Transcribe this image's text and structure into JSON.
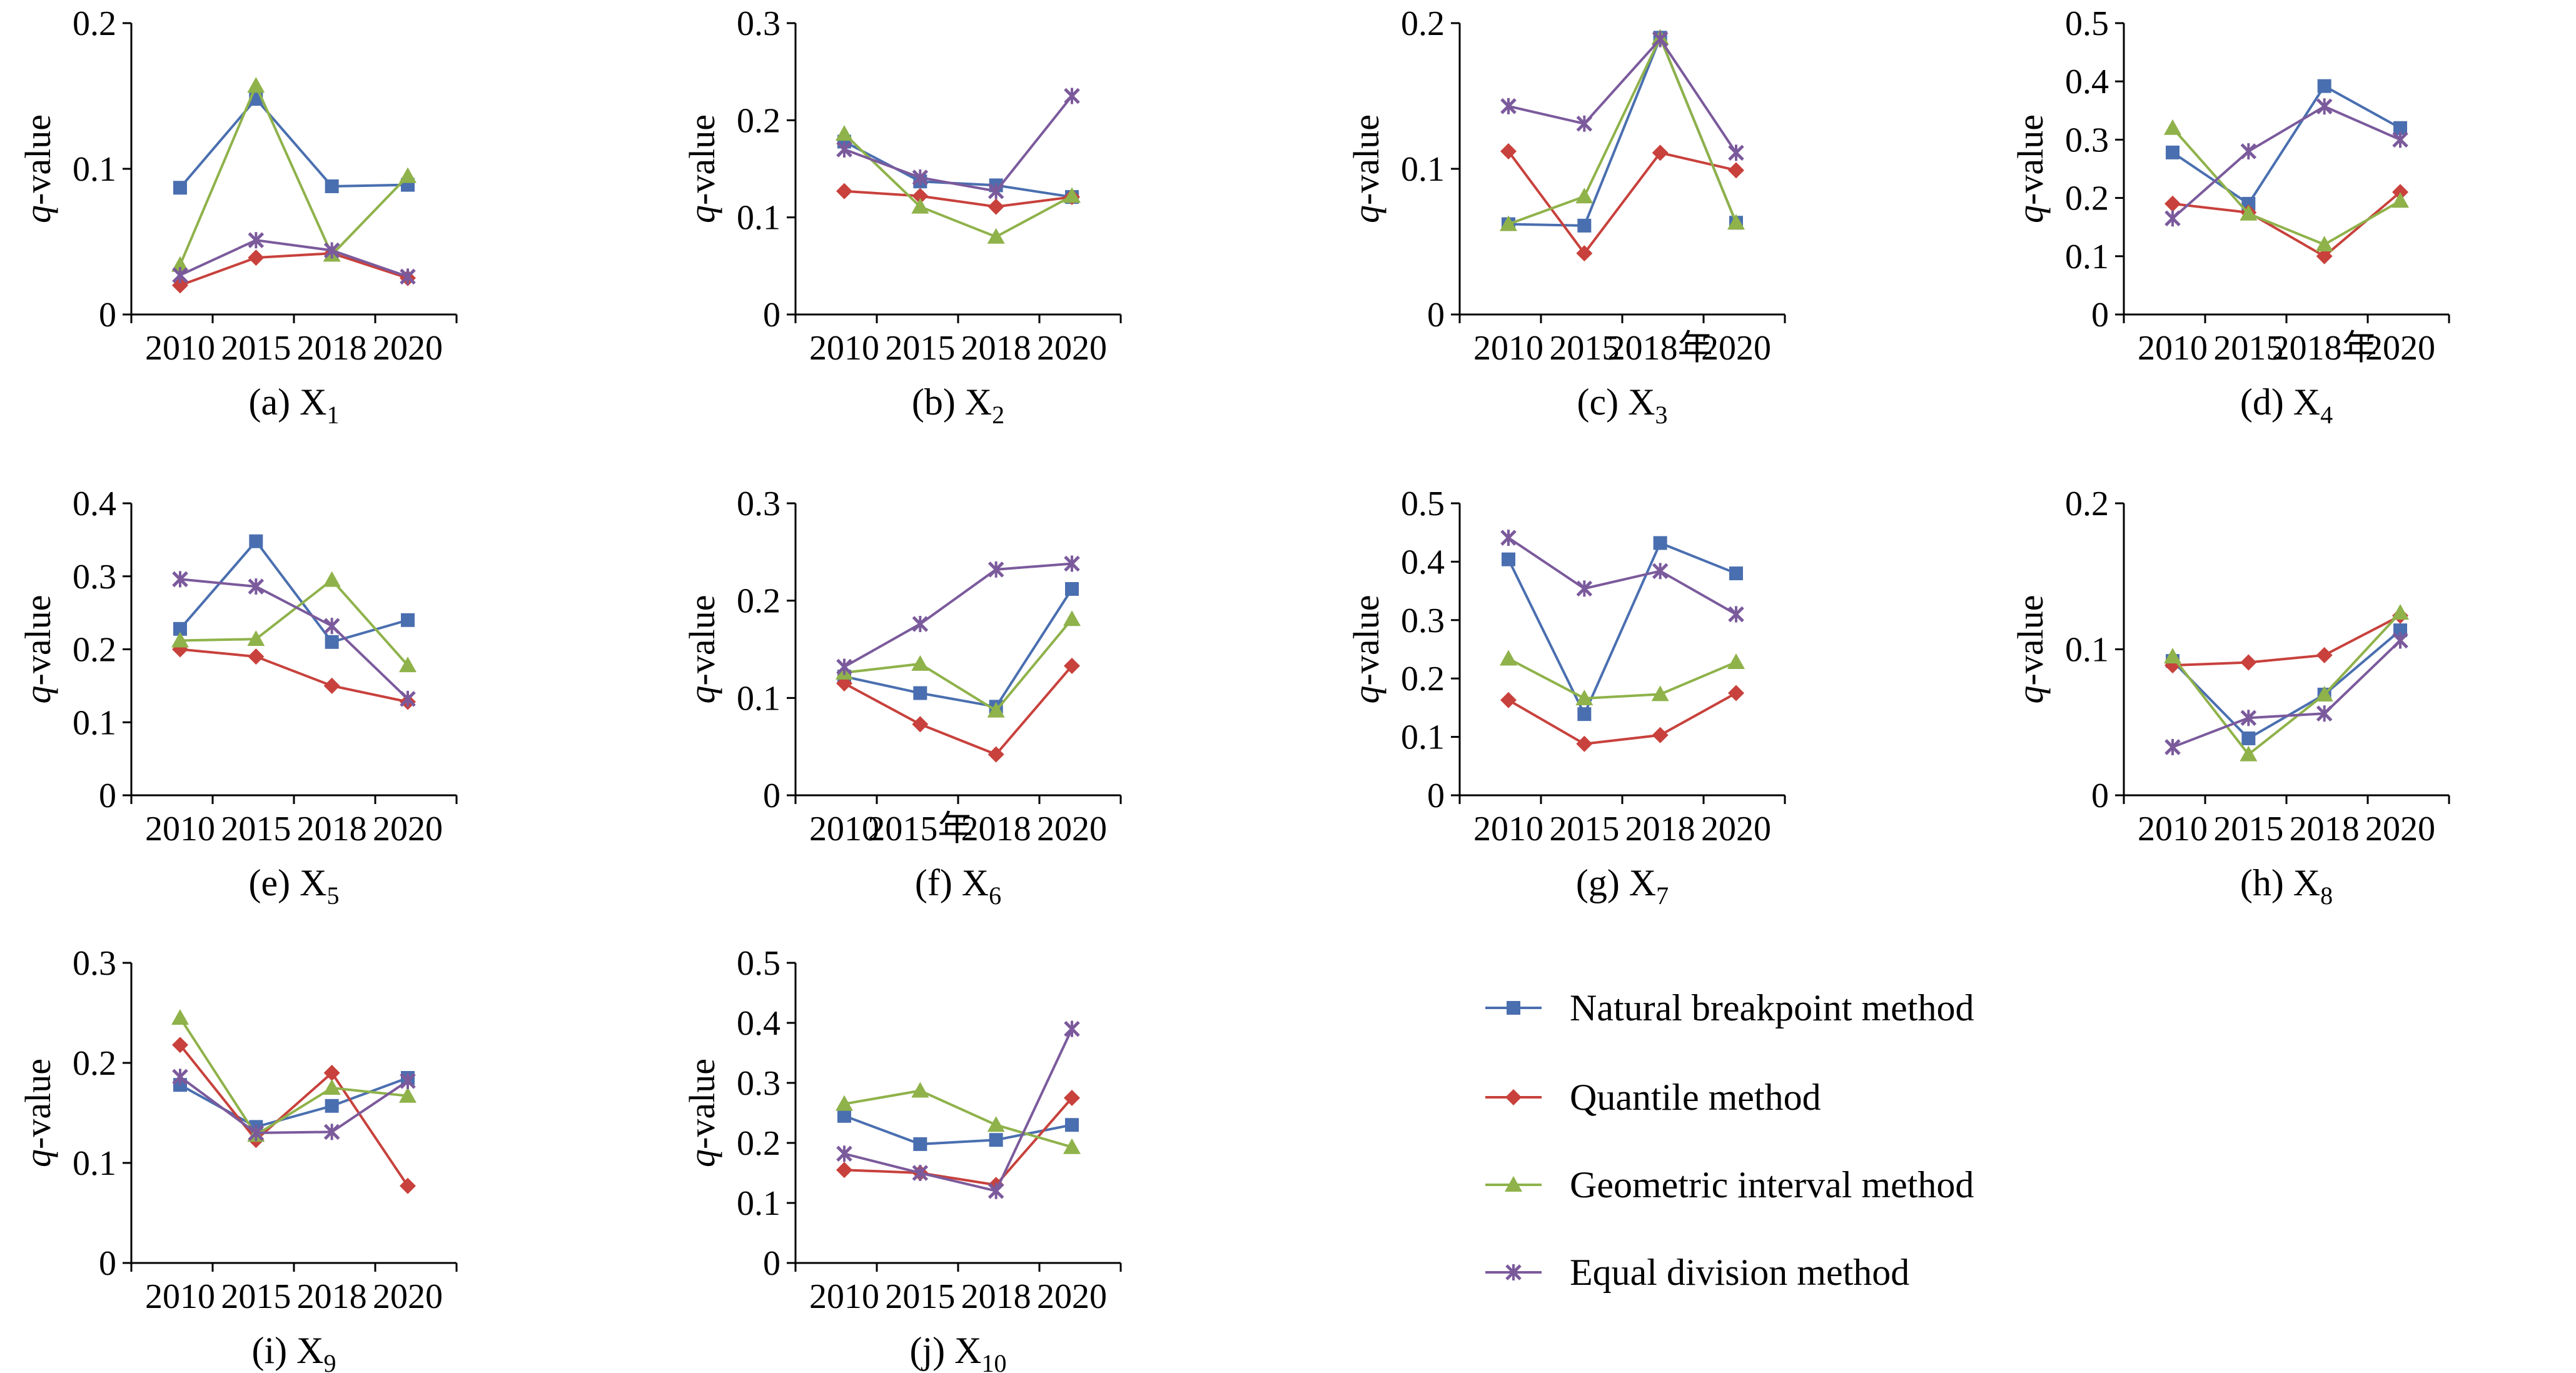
{
  "colors": {
    "natural": "#4a6fb0",
    "quantile": "#c8413c",
    "geometric": "#8fb24a",
    "equal": "#7b5a9c"
  },
  "legend": [
    {
      "label": "Natural breakpoint method",
      "color": "#4a6fb0",
      "marker": "square"
    },
    {
      "label": "Quantile method",
      "color": "#c8413c",
      "marker": "diamond"
    },
    {
      "label": "Geometric interval method",
      "color": "#8fb24a",
      "marker": "triangle"
    },
    {
      "label": "Equal division method",
      "color": "#7b5a9c",
      "marker": "star"
    }
  ],
  "chart_data": [
    {
      "type": "line",
      "caption": "(a) X",
      "caption_sub": "1",
      "ylabel": "q-value",
      "ylim": [
        0,
        0.2
      ],
      "yticks": [
        "0",
        "0.1",
        "0.2"
      ],
      "categories": [
        "2010",
        "2015",
        "2018",
        "2020"
      ],
      "series": [
        {
          "name": "Natural breakpoint method",
          "values": [
            0.087,
            0.148,
            0.088,
            0.089
          ]
        },
        {
          "name": "Quantile method",
          "values": [
            0.02,
            0.039,
            0.042,
            0.025
          ]
        },
        {
          "name": "Geometric interval method",
          "values": [
            0.034,
            0.157,
            0.041,
            0.095
          ]
        },
        {
          "name": "Equal division method",
          "values": [
            0.027,
            0.051,
            0.044,
            0.026
          ]
        }
      ]
    },
    {
      "type": "line",
      "caption": "(b) X",
      "caption_sub": "2",
      "ylabel": "q-value",
      "ylim": [
        0,
        0.3
      ],
      "yticks": [
        "0",
        "0.1",
        "0.2",
        "0.3"
      ],
      "categories": [
        "2010",
        "2015",
        "2018",
        "2020"
      ],
      "series": [
        {
          "name": "Natural breakpoint method",
          "values": [
            0.178,
            0.137,
            0.133,
            0.121
          ]
        },
        {
          "name": "Quantile method",
          "values": [
            0.127,
            0.122,
            0.111,
            0.121
          ]
        },
        {
          "name": "Geometric interval method",
          "values": [
            0.186,
            0.111,
            0.08,
            0.122
          ]
        },
        {
          "name": "Equal division method",
          "values": [
            0.17,
            0.141,
            0.127,
            0.225
          ]
        }
      ]
    },
    {
      "type": "line",
      "caption": "(c) X",
      "caption_sub": "3",
      "ylabel": "q-value",
      "ylim": [
        0,
        0.2
      ],
      "yticks": [
        "0",
        "0.1",
        "0.2"
      ],
      "categories": [
        "2010",
        "2015",
        "2018年",
        "2020"
      ],
      "series": [
        {
          "name": "Natural breakpoint method",
          "values": [
            0.062,
            0.061,
            0.19,
            0.063
          ]
        },
        {
          "name": "Quantile method",
          "values": [
            0.112,
            0.042,
            0.111,
            0.099
          ]
        },
        {
          "name": "Geometric interval method",
          "values": [
            0.062,
            0.081,
            0.19,
            0.063
          ]
        },
        {
          "name": "Equal division method",
          "values": [
            0.143,
            0.131,
            0.189,
            0.111
          ]
        }
      ]
    },
    {
      "type": "line",
      "caption": "(d) X",
      "caption_sub": "4",
      "ylabel": "q-value",
      "ylim": [
        0,
        0.5
      ],
      "yticks": [
        "0",
        "0.1",
        "0.2",
        "0.3",
        "0.4",
        "0.5"
      ],
      "categories": [
        "2010",
        "2015",
        "2018年",
        "2020"
      ],
      "series": [
        {
          "name": "Natural breakpoint method",
          "values": [
            0.278,
            0.19,
            0.392,
            0.32
          ]
        },
        {
          "name": "Quantile method",
          "values": [
            0.19,
            0.175,
            0.1,
            0.21
          ]
        },
        {
          "name": "Geometric interval method",
          "values": [
            0.32,
            0.173,
            0.12,
            0.195
          ]
        },
        {
          "name": "Equal division method",
          "values": [
            0.165,
            0.28,
            0.357,
            0.3
          ]
        }
      ]
    },
    {
      "type": "line",
      "caption": "(e) X",
      "caption_sub": "5",
      "ylabel": "q-value",
      "ylim": [
        0,
        0.4
      ],
      "yticks": [
        "0",
        "0.1",
        "0.2",
        "0.3",
        "0.4"
      ],
      "categories": [
        "2010",
        "2015",
        "2018",
        "2020"
      ],
      "series": [
        {
          "name": "Natural breakpoint method",
          "values": [
            0.228,
            0.348,
            0.21,
            0.24
          ]
        },
        {
          "name": "Quantile method",
          "values": [
            0.2,
            0.19,
            0.15,
            0.128
          ]
        },
        {
          "name": "Geometric interval method",
          "values": [
            0.212,
            0.214,
            0.295,
            0.178
          ]
        },
        {
          "name": "Equal division method",
          "values": [
            0.296,
            0.286,
            0.232,
            0.132
          ]
        }
      ]
    },
    {
      "type": "line",
      "caption": "(f) X",
      "caption_sub": "6",
      "ylabel": "q-value",
      "ylim": [
        0,
        0.3
      ],
      "yticks": [
        "0",
        "0.1",
        "0.2",
        "0.3"
      ],
      "categories": [
        "2010",
        "2015年",
        "2018",
        "2020"
      ],
      "series": [
        {
          "name": "Natural breakpoint method",
          "values": [
            0.122,
            0.105,
            0.091,
            0.212
          ]
        },
        {
          "name": "Quantile method",
          "values": [
            0.115,
            0.073,
            0.042,
            0.133
          ]
        },
        {
          "name": "Geometric interval method",
          "values": [
            0.126,
            0.135,
            0.087,
            0.181
          ]
        },
        {
          "name": "Equal division method",
          "values": [
            0.132,
            0.176,
            0.232,
            0.238
          ]
        }
      ]
    },
    {
      "type": "line",
      "caption": "(g) X",
      "caption_sub": "7",
      "ylabel": "q-value",
      "ylim": [
        0,
        0.5
      ],
      "yticks": [
        "0",
        "0.1",
        "0.2",
        "0.3",
        "0.4",
        "0.5"
      ],
      "categories": [
        "2010",
        "2015",
        "2018",
        "2020"
      ],
      "series": [
        {
          "name": "Natural breakpoint method",
          "values": [
            0.404,
            0.139,
            0.432,
            0.38
          ]
        },
        {
          "name": "Quantile method",
          "values": [
            0.163,
            0.088,
            0.103,
            0.175
          ]
        },
        {
          "name": "Geometric interval method",
          "values": [
            0.234,
            0.166,
            0.173,
            0.228
          ]
        },
        {
          "name": "Equal division method",
          "values": [
            0.441,
            0.354,
            0.384,
            0.31
          ]
        }
      ]
    },
    {
      "type": "line",
      "caption": "(h) X",
      "caption_sub": "8",
      "ylabel": "q-value",
      "ylim": [
        0,
        0.2
      ],
      "yticks": [
        "0",
        "0.1",
        "0.2"
      ],
      "categories": [
        "2010",
        "2015",
        "2018",
        "2020"
      ],
      "series": [
        {
          "name": "Natural breakpoint method",
          "values": [
            0.092,
            0.039,
            0.069,
            0.113
          ]
        },
        {
          "name": "Quantile method",
          "values": [
            0.089,
            0.091,
            0.096,
            0.123
          ]
        },
        {
          "name": "Geometric interval method",
          "values": [
            0.095,
            0.028,
            0.069,
            0.125
          ]
        },
        {
          "name": "Equal division method",
          "values": [
            0.033,
            0.053,
            0.056,
            0.106
          ]
        }
      ]
    },
    {
      "type": "line",
      "caption": "(i) X",
      "caption_sub": "9",
      "ylabel": "q-value",
      "ylim": [
        0,
        0.3
      ],
      "yticks": [
        "0",
        "0.1",
        "0.2",
        "0.3"
      ],
      "categories": [
        "2010",
        "2015",
        "2018",
        "2020"
      ],
      "series": [
        {
          "name": "Natural breakpoint method",
          "values": [
            0.178,
            0.136,
            0.157,
            0.185
          ]
        },
        {
          "name": "Quantile method",
          "values": [
            0.218,
            0.123,
            0.19,
            0.077
          ]
        },
        {
          "name": "Geometric interval method",
          "values": [
            0.245,
            0.128,
            0.175,
            0.167
          ]
        },
        {
          "name": "Equal division method",
          "values": [
            0.186,
            0.13,
            0.131,
            0.182
          ]
        }
      ]
    },
    {
      "type": "line",
      "caption": "(j) X",
      "caption_sub": "10",
      "ylabel": "q-value",
      "ylim": [
        0,
        0.5
      ],
      "yticks": [
        "0",
        "0.1",
        "0.2",
        "0.3",
        "0.4",
        "0.5"
      ],
      "categories": [
        "2010",
        "2015",
        "2018",
        "2020"
      ],
      "series": [
        {
          "name": "Natural breakpoint method",
          "values": [
            0.245,
            0.198,
            0.205,
            0.23
          ]
        },
        {
          "name": "Quantile method",
          "values": [
            0.155,
            0.15,
            0.13,
            0.275
          ]
        },
        {
          "name": "Geometric interval method",
          "values": [
            0.265,
            0.287,
            0.23,
            0.193
          ]
        },
        {
          "name": "Equal division method",
          "values": [
            0.182,
            0.15,
            0.12,
            0.39
          ]
        }
      ]
    }
  ]
}
